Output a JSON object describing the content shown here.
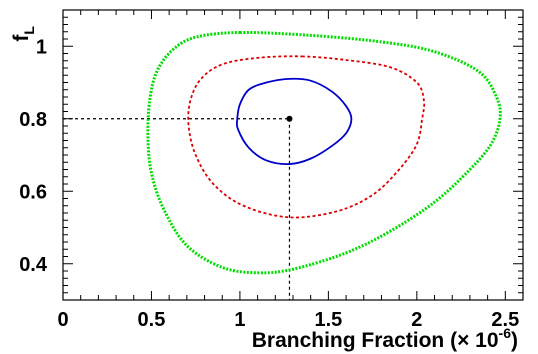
{
  "chart_data": {
    "type": "line",
    "title": "",
    "xlabel": "Branching Fraction (× 10",
    "xlabel_exponent": "-6",
    "xlabel_close": ")",
    "ylabel": "f",
    "ylabel_subscript": "L",
    "xlim": [
      0,
      2.6
    ],
    "ylim": [
      0.3,
      1.1
    ],
    "x_ticks": [
      0,
      0.5,
      1,
      1.5,
      2,
      2.5
    ],
    "x_tick_labels": [
      "0",
      "0.5",
      "1",
      "1.5",
      "2",
      "2.5"
    ],
    "y_ticks": [
      0.4,
      0.6,
      0.8,
      1.0
    ],
    "y_tick_labels": [
      "0.4",
      "0.6",
      "0.8",
      "1"
    ],
    "grid": false,
    "central_value": {
      "x": 1.28,
      "y": 0.8
    },
    "series": [
      {
        "style": "solid",
        "color": "#0000cc",
        "points": [
          [
            1.28,
            0.91
          ],
          [
            1.4,
            0.905
          ],
          [
            1.52,
            0.875
          ],
          [
            1.6,
            0.835
          ],
          [
            1.63,
            0.8
          ],
          [
            1.6,
            0.76
          ],
          [
            1.52,
            0.725
          ],
          [
            1.4,
            0.69
          ],
          [
            1.28,
            0.675
          ],
          [
            1.15,
            0.685
          ],
          [
            1.05,
            0.72
          ],
          [
            0.99,
            0.77
          ],
          [
            0.985,
            0.8
          ],
          [
            1.0,
            0.84
          ],
          [
            1.05,
            0.88
          ],
          [
            1.15,
            0.9
          ]
        ]
      },
      {
        "style": "dashed",
        "color": "#dd0000",
        "points": [
          [
            1.35,
            0.972
          ],
          [
            1.6,
            0.962
          ],
          [
            1.85,
            0.942
          ],
          [
            2.0,
            0.9
          ],
          [
            2.04,
            0.85
          ],
          [
            2.03,
            0.8
          ],
          [
            2.0,
            0.73
          ],
          [
            1.9,
            0.66
          ],
          [
            1.75,
            0.59
          ],
          [
            1.55,
            0.545
          ],
          [
            1.28,
            0.528
          ],
          [
            1.02,
            0.56
          ],
          [
            0.85,
            0.62
          ],
          [
            0.75,
            0.7
          ],
          [
            0.71,
            0.78
          ],
          [
            0.72,
            0.85
          ],
          [
            0.78,
            0.91
          ],
          [
            0.9,
            0.95
          ],
          [
            1.1,
            0.968
          ]
        ]
      },
      {
        "style": "dotted",
        "color": "#00dd00",
        "points": [
          [
            1.0,
            1.038
          ],
          [
            1.4,
            1.03
          ],
          [
            1.8,
            1.012
          ],
          [
            2.1,
            0.985
          ],
          [
            2.35,
            0.93
          ],
          [
            2.45,
            0.86
          ],
          [
            2.47,
            0.8
          ],
          [
            2.42,
            0.73
          ],
          [
            2.3,
            0.66
          ],
          [
            2.1,
            0.57
          ],
          [
            1.85,
            0.49
          ],
          [
            1.6,
            0.43
          ],
          [
            1.3,
            0.385
          ],
          [
            1.1,
            0.375
          ],
          [
            0.9,
            0.39
          ],
          [
            0.7,
            0.45
          ],
          [
            0.57,
            0.55
          ],
          [
            0.5,
            0.65
          ],
          [
            0.48,
            0.75
          ],
          [
            0.49,
            0.85
          ],
          [
            0.53,
            0.93
          ],
          [
            0.62,
            0.99
          ],
          [
            0.75,
            1.025
          ]
        ]
      }
    ]
  }
}
